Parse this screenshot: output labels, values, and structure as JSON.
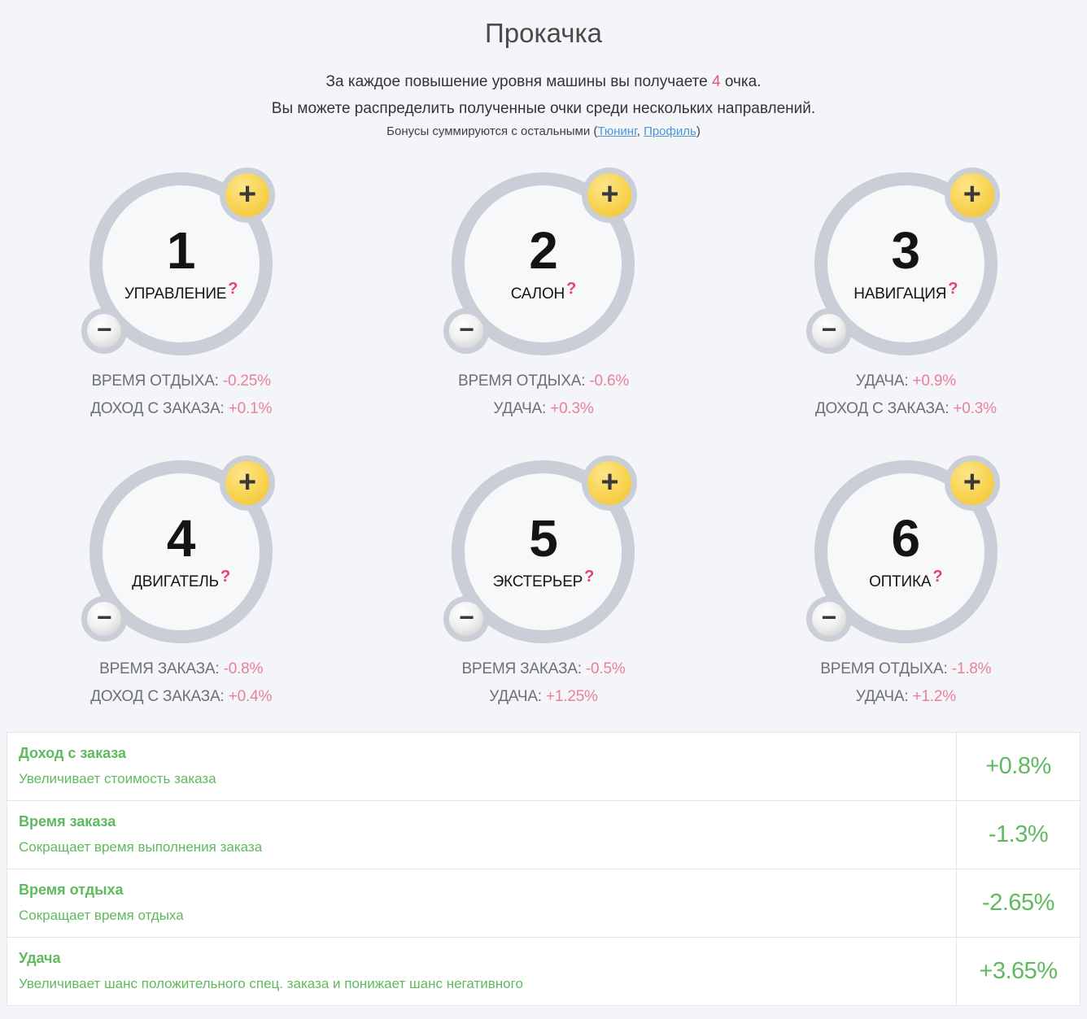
{
  "header": {
    "title": "Прокачка",
    "line1_before": "За каждое повышение уровня машины вы получаете ",
    "points_per_level": "4",
    "line1_after": " очка.",
    "line2": "Вы можете распределить полученные очки среди нескольких направлений.",
    "line3_before": "Бонусы суммируются с остальными (",
    "link_tuning": "Тюнинг",
    "line3_separator": ", ",
    "link_profile": "Профиль",
    "line3_after": ")"
  },
  "icons": {
    "plus": "+",
    "minus": "−",
    "help": "?"
  },
  "skills": [
    {
      "number": "1",
      "name": "УПРАВЛЕНИЕ",
      "stats": [
        {
          "label": "ВРЕМЯ ОТДЫХА:",
          "value": "-0.25%"
        },
        {
          "label": "ДОХОД С ЗАКАЗА:",
          "value": "+0.1%"
        }
      ]
    },
    {
      "number": "2",
      "name": "САЛОН",
      "stats": [
        {
          "label": "ВРЕМЯ ОТДЫХА:",
          "value": "-0.6%"
        },
        {
          "label": "УДАЧА:",
          "value": "+0.3%"
        }
      ]
    },
    {
      "number": "3",
      "name": "НАВИГАЦИЯ",
      "stats": [
        {
          "label": "УДАЧА:",
          "value": "+0.9%"
        },
        {
          "label": "ДОХОД С ЗАКАЗА:",
          "value": "+0.3%"
        }
      ]
    },
    {
      "number": "4",
      "name": "ДВИГАТЕЛЬ",
      "stats": [
        {
          "label": "ВРЕМЯ ЗАКАЗА:",
          "value": "-0.8%"
        },
        {
          "label": "ДОХОД С ЗАКАЗА:",
          "value": "+0.4%"
        }
      ]
    },
    {
      "number": "5",
      "name": "ЭКСТЕРЬЕР",
      "stats": [
        {
          "label": "ВРЕМЯ ЗАКАЗА:",
          "value": "-0.5%"
        },
        {
          "label": "УДАЧА:",
          "value": "+1.25%"
        }
      ]
    },
    {
      "number": "6",
      "name": "ОПТИКА",
      "stats": [
        {
          "label": "ВРЕМЯ ОТДЫХА:",
          "value": "-1.8%"
        },
        {
          "label": "УДАЧА:",
          "value": "+1.2%"
        }
      ]
    }
  ],
  "summary_table": {
    "rows": [
      {
        "title": "Доход с заказа",
        "description": "Увеличивает стоимость заказа",
        "value": "+0.8%"
      },
      {
        "title": "Время заказа",
        "description": "Сокращает время выполнения заказа",
        "value": "-1.3%"
      },
      {
        "title": "Время отдыха",
        "description": "Сокращает время отдыха",
        "value": "-2.65%"
      },
      {
        "title": "Удача",
        "description": "Увеличивает шанс положительного спец. заказа и понижает шанс негативного",
        "value": "+3.65%"
      }
    ]
  },
  "colors": {
    "background": "#f4f5f8",
    "ring_gray": "#c9ced7",
    "plus_yellow": "#f8d351",
    "value_pink": "#e87f9d",
    "help_pink": "#e8416d",
    "table_green": "#5fba5f",
    "link_blue": "#4e94d9"
  }
}
